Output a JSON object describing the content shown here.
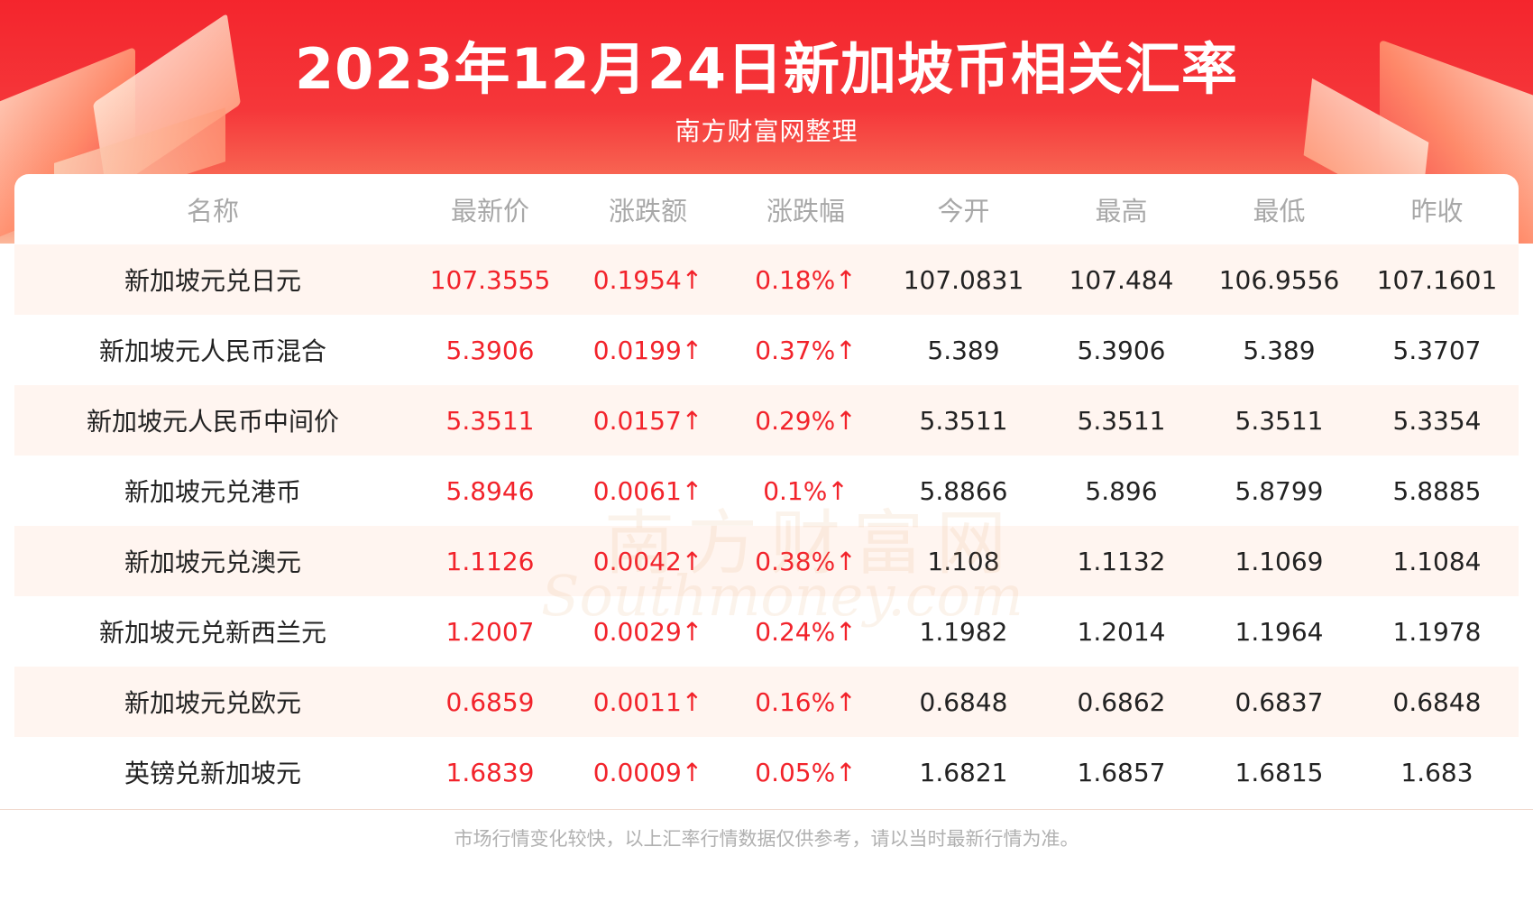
{
  "header": {
    "title": "2023年12月24日新加坡币相关汇率",
    "subtitle": "南方财富网整理"
  },
  "table": {
    "columns": [
      "名称",
      "最新价",
      "涨跌额",
      "涨跌幅",
      "今开",
      "最高",
      "最低",
      "昨收"
    ],
    "rows": [
      [
        "新加坡元兑日元",
        "107.3555",
        "0.1954↑",
        "0.18%↑",
        "107.0831",
        "107.484",
        "106.9556",
        "107.1601"
      ],
      [
        "新加坡元人民币混合",
        "5.3906",
        "0.0199↑",
        "0.37%↑",
        "5.389",
        "5.3906",
        "5.389",
        "5.3707"
      ],
      [
        "新加坡元人民币中间价",
        "5.3511",
        "0.0157↑",
        "0.29%↑",
        "5.3511",
        "5.3511",
        "5.3511",
        "5.3354"
      ],
      [
        "新加坡元兑港币",
        "5.8946",
        "0.0061↑",
        "0.1%↑",
        "5.8866",
        "5.896",
        "5.8799",
        "5.8885"
      ],
      [
        "新加坡元兑澳元",
        "1.1126",
        "0.0042↑",
        "0.38%↑",
        "1.108",
        "1.1132",
        "1.1069",
        "1.1084"
      ],
      [
        "新加坡元兑新西兰元",
        "1.2007",
        "0.0029↑",
        "0.24%↑",
        "1.1982",
        "1.2014",
        "1.1964",
        "1.1978"
      ],
      [
        "新加坡元兑欧元",
        "0.6859",
        "0.0011↑",
        "0.16%↑",
        "0.6848",
        "0.6862",
        "0.6837",
        "0.6848"
      ],
      [
        "英镑兑新加坡元",
        "1.6839",
        "0.0009↑",
        "0.05%↑",
        "1.6821",
        "1.6857",
        "1.6815",
        "1.683"
      ]
    ]
  },
  "watermark": {
    "cn": "南方财富网",
    "en": "Southmoney.com"
  },
  "footer": {
    "note": "市场行情变化较快，以上汇率行情数据仅供参考，请以当时最新行情为准。"
  },
  "colors": {
    "banner_red": "#f4252d",
    "up_red": "#f2232b",
    "row_alt": "#fff5f0",
    "header_text": "#a8a8a8"
  }
}
